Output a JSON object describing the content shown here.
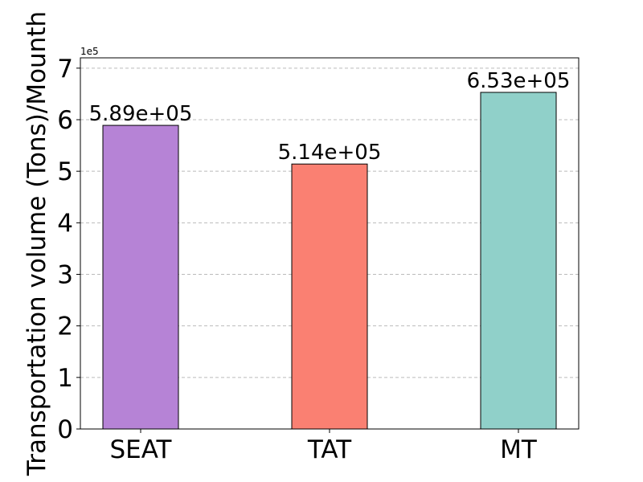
{
  "chart_data": {
    "type": "bar",
    "categories": [
      "SEAT",
      "TAT",
      "MT"
    ],
    "values": [
      589000,
      514000,
      653000
    ],
    "value_labels": [
      "5.89e+05",
      "5.14e+05",
      "6.53e+05"
    ],
    "colors": [
      "#b683d6",
      "#fa8072",
      "#90d0c9"
    ],
    "ylabel": "Transportation volume (Tons)/Mounth",
    "ylim": [
      0,
      720000
    ],
    "yticks": [
      0,
      1,
      2,
      3,
      4,
      5,
      6,
      7
    ],
    "y_offset_label": "1e5",
    "grid": true,
    "grid_axis": "y"
  }
}
